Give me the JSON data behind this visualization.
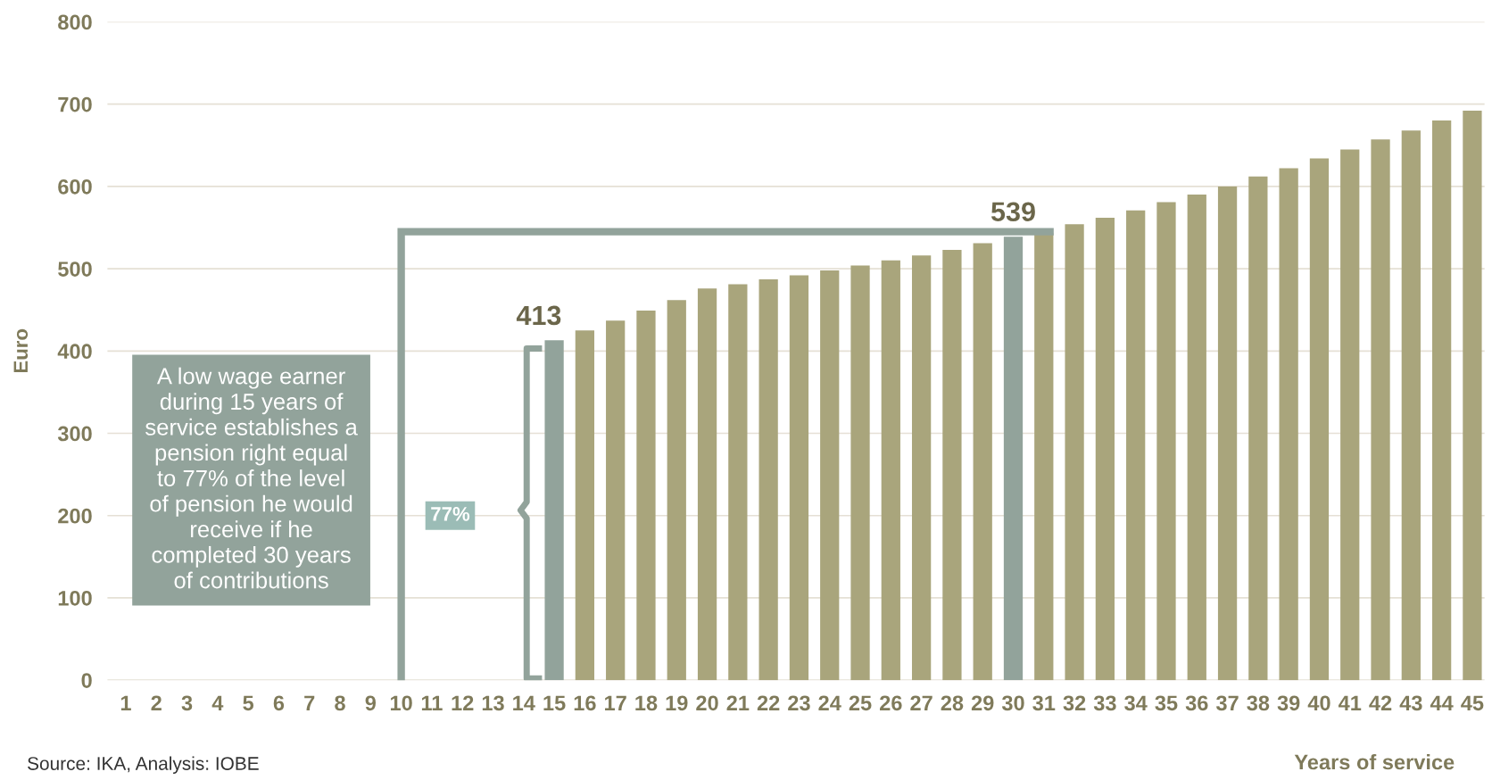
{
  "chart_data": {
    "type": "bar",
    "xlabel": "Years of service",
    "ylabel": "Euro",
    "categories": [
      "1",
      "2",
      "3",
      "4",
      "5",
      "6",
      "7",
      "8",
      "9",
      "10",
      "11",
      "12",
      "13",
      "14",
      "15",
      "16",
      "17",
      "18",
      "19",
      "20",
      "21",
      "22",
      "23",
      "24",
      "25",
      "26",
      "27",
      "28",
      "29",
      "30",
      "31",
      "32",
      "33",
      "34",
      "35",
      "36",
      "37",
      "38",
      "39",
      "40",
      "41",
      "42",
      "43",
      "44",
      "45"
    ],
    "values": [
      null,
      null,
      null,
      null,
      null,
      null,
      null,
      null,
      null,
      null,
      null,
      null,
      null,
      null,
      413,
      425,
      437,
      449,
      462,
      476,
      481,
      487,
      492,
      498,
      504,
      510,
      516,
      523,
      531,
      539,
      543,
      554,
      562,
      571,
      581,
      590,
      600,
      612,
      622,
      634,
      645,
      657,
      668,
      680,
      692
    ],
    "colors": [
      "#a9a57c",
      "#a9a57c",
      "#a9a57c",
      "#a9a57c",
      "#a9a57c",
      "#a9a57c",
      "#a9a57c",
      "#a9a57c",
      "#a9a57c",
      "#a9a57c",
      "#a9a57c",
      "#a9a57c",
      "#a9a57c",
      "#a9a57c",
      "#92a39b",
      "#a9a57c",
      "#a9a57c",
      "#a9a57c",
      "#a9a57c",
      "#a9a57c",
      "#a9a57c",
      "#a9a57c",
      "#a9a57c",
      "#a9a57c",
      "#a9a57c",
      "#a9a57c",
      "#a9a57c",
      "#a9a57c",
      "#a9a57c",
      "#92a39b",
      "#a9a57c",
      "#a9a57c",
      "#a9a57c",
      "#a9a57c",
      "#a9a57c",
      "#a9a57c",
      "#a9a57c",
      "#a9a57c",
      "#a9a57c",
      "#a9a57c",
      "#a9a57c",
      "#a9a57c",
      "#a9a57c",
      "#a9a57c",
      "#a9a57c"
    ],
    "value_labels": [
      null,
      null,
      null,
      null,
      null,
      null,
      null,
      null,
      null,
      null,
      null,
      null,
      null,
      null,
      "413",
      null,
      null,
      null,
      null,
      null,
      null,
      null,
      null,
      null,
      null,
      null,
      null,
      null,
      null,
      "539",
      null,
      null,
      null,
      null,
      null,
      null,
      null,
      null,
      null,
      null,
      null,
      null,
      null,
      null,
      null
    ],
    "ylim": [
      0,
      800
    ],
    "yticks": [
      0,
      100,
      200,
      300,
      400,
      500,
      600,
      700,
      800
    ],
    "grid": "y",
    "annotations": [
      "A low wage earner\nduring 15 years of\nservice establishes a\npension right equal\nto 77% of the level\nof pension he would\nreceive if he\ncompleted 30 years\nof contributions",
      "77%",
      "Source: IKA, Analysis: IOBE"
    ]
  }
}
